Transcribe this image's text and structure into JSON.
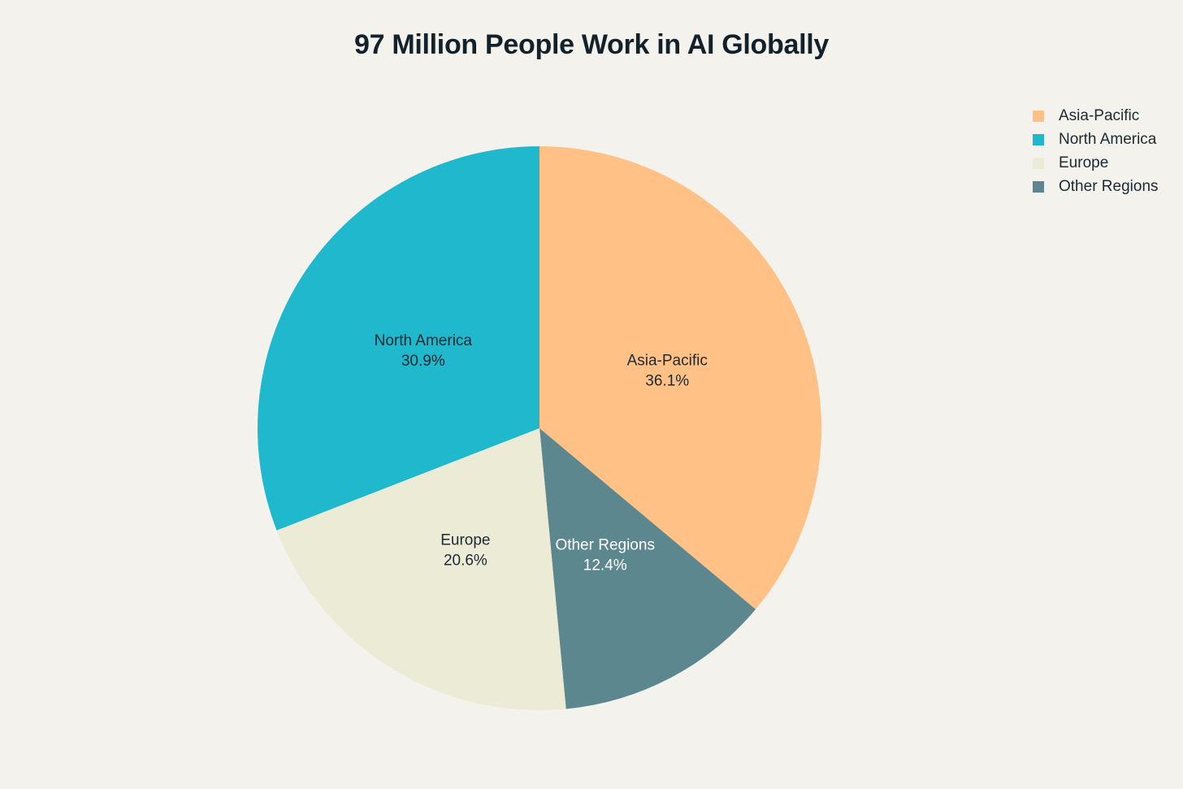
{
  "chart_data": {
    "type": "pie",
    "title": "97 Million People Work in AI Globally",
    "slices": [
      {
        "name": "Asia-Pacific",
        "value": 36.1,
        "label": "36.1%",
        "color": "#ffc185",
        "text_color": "#1c2a33"
      },
      {
        "name": "Other Regions",
        "value": 12.4,
        "label": "12.4%",
        "color": "#5d878f",
        "text_color": "#ffffff"
      },
      {
        "name": "Europe",
        "value": 20.6,
        "label": "20.6%",
        "color": "#ecebd5",
        "text_color": "#1c2a33"
      },
      {
        "name": "North America",
        "value": 30.9,
        "label": "30.9%",
        "color": "#1fb8cd",
        "text_color": "#1c2a33"
      }
    ],
    "legend": {
      "placement": "top-right",
      "entries": [
        {
          "name": "Asia-Pacific",
          "color": "#ffc185"
        },
        {
          "name": "North America",
          "color": "#1fb8cd"
        },
        {
          "name": "Europe",
          "color": "#ecebd5"
        },
        {
          "name": "Other Regions",
          "color": "#5d878f"
        }
      ]
    },
    "direction": "clockwise",
    "start": "top"
  }
}
